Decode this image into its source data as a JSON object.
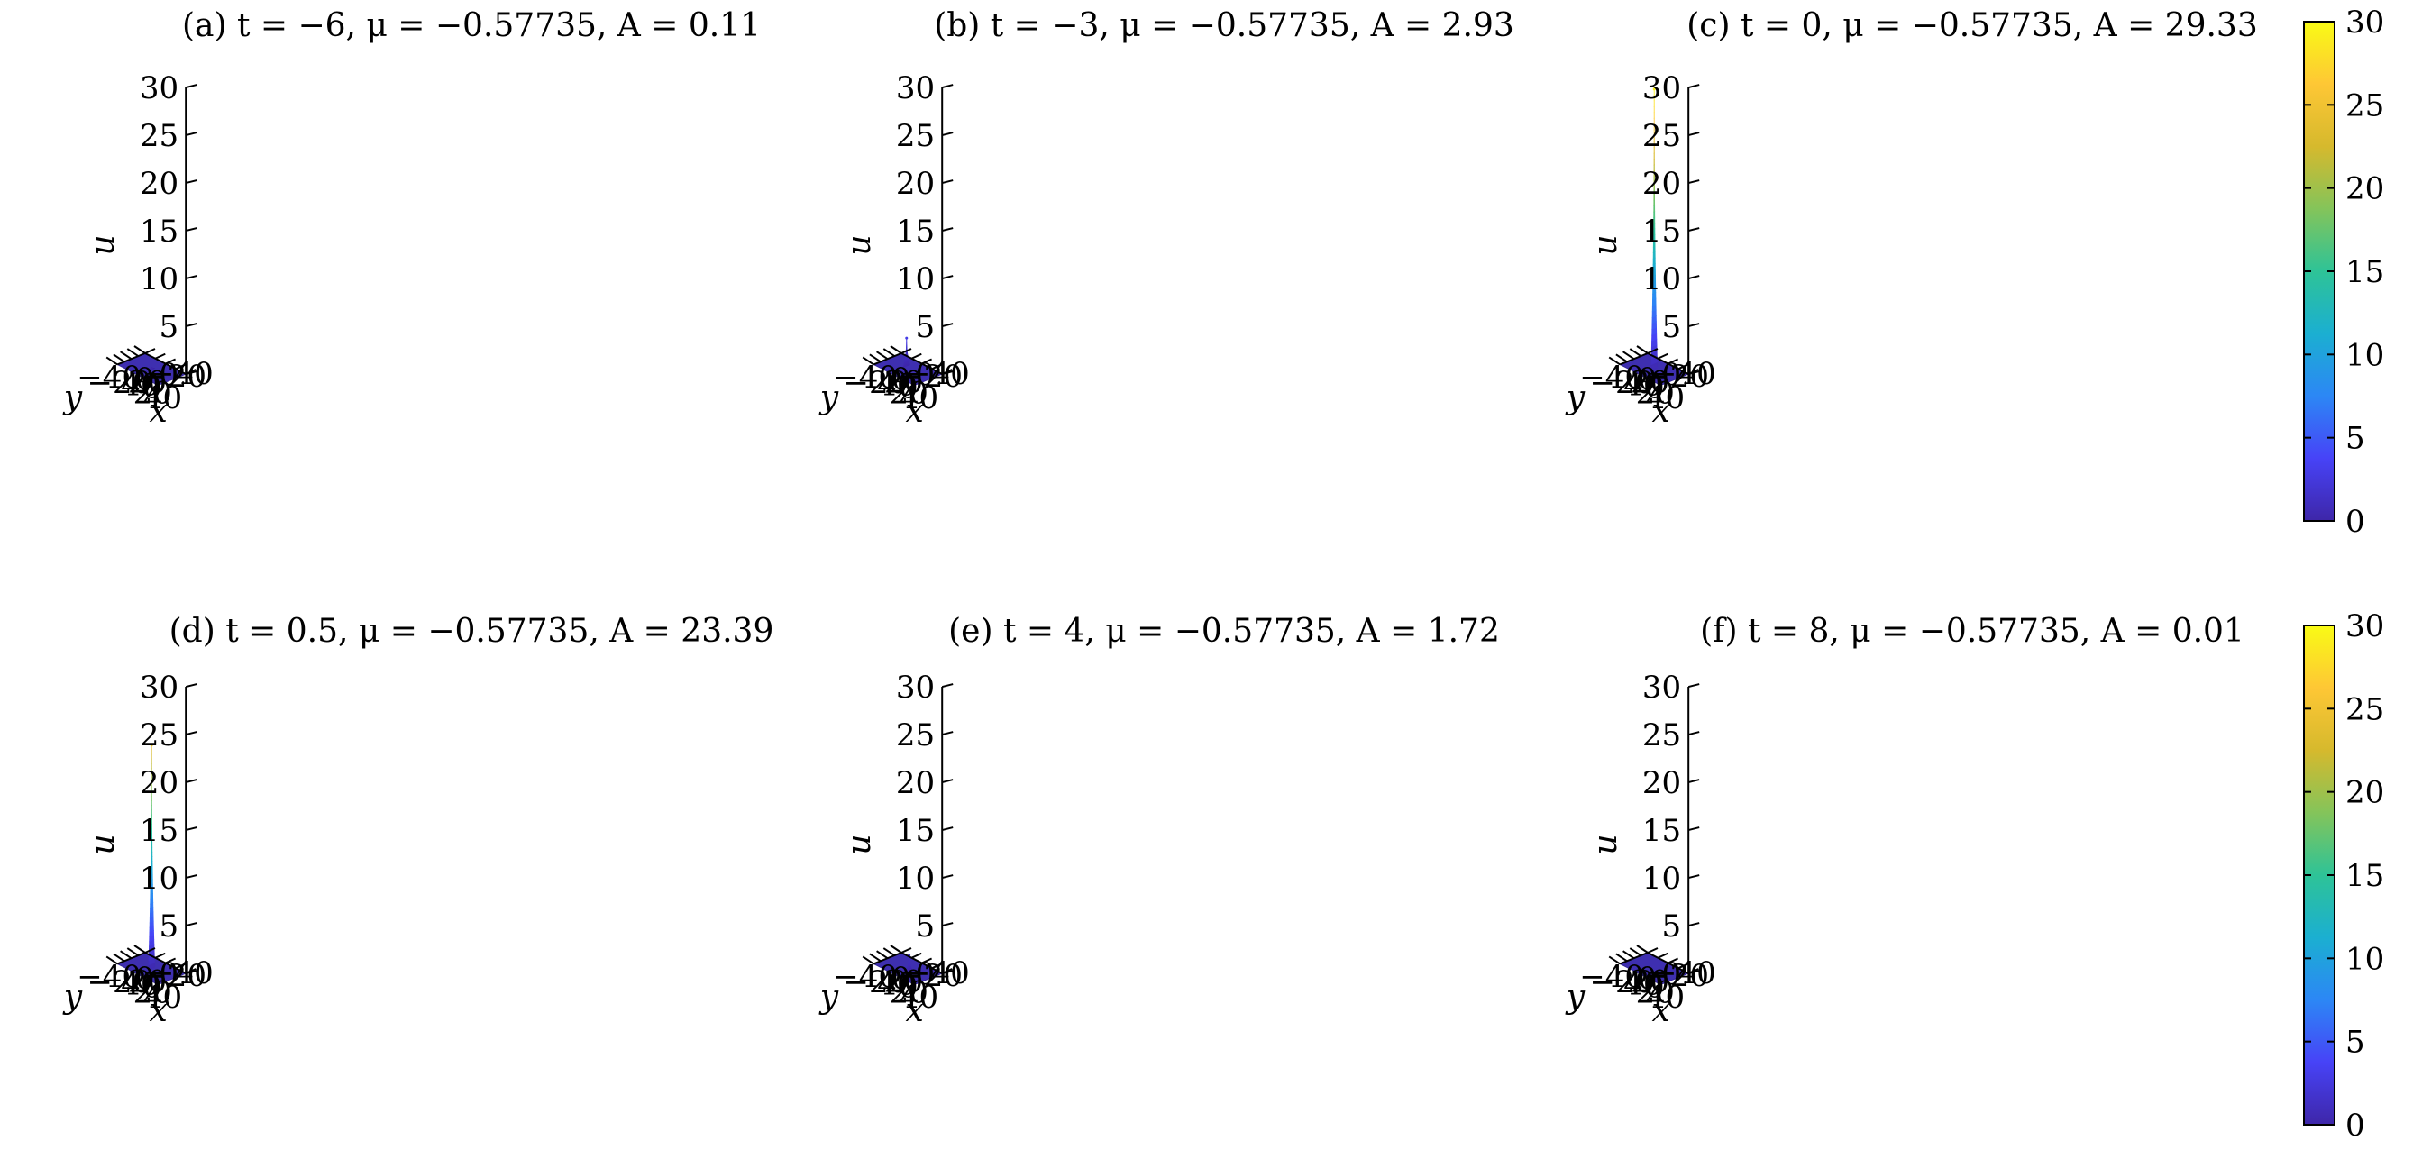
{
  "chart_data": [
    {
      "type": "surface",
      "panel": "a",
      "title": "(a) t = −6,  μ = −0.57735,  A = 0.11",
      "t": -6,
      "mu": -0.57735,
      "A": 0.11,
      "zlabel": "u",
      "xlabel": "x",
      "ylabel": "y",
      "xlim": [
        -40,
        40
      ],
      "ylim": [
        -40,
        40
      ],
      "zlim": [
        0,
        30
      ],
      "xticks": [
        "−40",
        "−20",
        "0",
        "20",
        "40"
      ],
      "yticks": [
        "−40",
        "−20",
        "0",
        "20",
        "40"
      ],
      "zticks": [
        "0",
        "5",
        "10",
        "15",
        "20",
        "25",
        "30"
      ],
      "peak": {
        "x": 0,
        "y": 0,
        "u": 0.11
      }
    },
    {
      "type": "surface",
      "panel": "b",
      "title": "(b) t = −3,  μ = −0.57735,  A = 2.93",
      "t": -3,
      "mu": -0.57735,
      "A": 2.93,
      "zlabel": "u",
      "xlabel": "x",
      "ylabel": "y",
      "xlim": [
        -40,
        40
      ],
      "ylim": [
        -40,
        40
      ],
      "zlim": [
        0,
        30
      ],
      "xticks": [
        "−40",
        "−20",
        "0",
        "20",
        "40"
      ],
      "yticks": [
        "−40",
        "−20",
        "0",
        "20",
        "40"
      ],
      "zticks": [
        "0",
        "5",
        "10",
        "15",
        "20",
        "25",
        "30"
      ],
      "peak": {
        "x": -8,
        "y": -8,
        "u": 2.93
      }
    },
    {
      "type": "surface",
      "panel": "c",
      "title": "(c) t = 0,  μ = −0.57735,  A = 29.33",
      "t": 0,
      "mu": -0.57735,
      "A": 29.33,
      "zlabel": "u",
      "xlabel": "x",
      "ylabel": "y",
      "xlim": [
        -40,
        40
      ],
      "ylim": [
        -40,
        40
      ],
      "zlim": [
        0,
        30
      ],
      "xticks": [
        "−40",
        "−20",
        "0",
        "20",
        "40"
      ],
      "yticks": [
        "−40",
        "−20",
        "0",
        "20",
        "40"
      ],
      "zticks": [
        "0",
        "5",
        "10",
        "15",
        "20",
        "25",
        "30"
      ],
      "peak": {
        "x": 0,
        "y": 0,
        "u": 29.33
      }
    },
    {
      "type": "surface",
      "panel": "d",
      "title": "(d) t = 0.5,  μ = −0.57735,  A = 23.39",
      "t": 0.5,
      "mu": -0.57735,
      "A": 23.39,
      "zlabel": "u",
      "xlabel": "x",
      "ylabel": "y",
      "xlim": [
        -40,
        40
      ],
      "ylim": [
        -40,
        40
      ],
      "zlim": [
        0,
        30
      ],
      "xticks": [
        "−40",
        "−20",
        "0",
        "20",
        "40"
      ],
      "yticks": [
        "−40",
        "−20",
        "0",
        "20",
        "40"
      ],
      "zticks": [
        "0",
        "5",
        "10",
        "15",
        "20",
        "25",
        "30"
      ],
      "peak": {
        "x": 0,
        "y": 0,
        "u": 23.39
      }
    },
    {
      "type": "surface",
      "panel": "e",
      "title": "(e) t = 4,  μ = −0.57735,  A = 1.72",
      "t": 4,
      "mu": -0.57735,
      "A": 1.72,
      "zlabel": "u",
      "xlabel": "x",
      "ylabel": "y",
      "xlim": [
        -40,
        40
      ],
      "ylim": [
        -40,
        40
      ],
      "zlim": [
        0,
        30
      ],
      "xticks": [
        "−40",
        "−20",
        "0",
        "20",
        "40"
      ],
      "yticks": [
        "−40",
        "−20",
        "0",
        "20",
        "40"
      ],
      "zticks": [
        "0",
        "5",
        "10",
        "15",
        "20",
        "25",
        "30"
      ],
      "peak": {
        "x": 8,
        "y": 8,
        "u": 1.72
      }
    },
    {
      "type": "surface",
      "panel": "f",
      "title": "(f) t = 8,  μ = −0.57735,  A = 0.01",
      "t": 8,
      "mu": -0.57735,
      "A": 0.01,
      "zlabel": "u",
      "xlabel": "x",
      "ylabel": "y",
      "xlim": [
        -40,
        40
      ],
      "ylim": [
        -40,
        40
      ],
      "zlim": [
        0,
        30
      ],
      "xticks": [
        "−40",
        "−20",
        "0",
        "20",
        "40"
      ],
      "yticks": [
        "−40",
        "−20",
        "0",
        "20",
        "40"
      ],
      "zticks": [
        "0",
        "5",
        "10",
        "15",
        "20",
        "25",
        "30"
      ],
      "peak": {
        "x": 16,
        "y": 16,
        "u": 0.01
      }
    }
  ],
  "colorbars": [
    {
      "range": [
        0,
        30
      ],
      "ticks": [
        "0",
        "5",
        "10",
        "15",
        "20",
        "25",
        "30"
      ],
      "colormap": "parula"
    },
    {
      "range": [
        0,
        30
      ],
      "ticks": [
        "0",
        "5",
        "10",
        "15",
        "20",
        "25",
        "30"
      ],
      "colormap": "parula"
    }
  ],
  "colors": {
    "surface_base": "#3e2fb0",
    "parula": [
      "#3e26a8",
      "#4743f7",
      "#2c87f5",
      "#1bafd1",
      "#2ec397",
      "#84c45a",
      "#d6b92d",
      "#fec735",
      "#f9fb15"
    ]
  }
}
